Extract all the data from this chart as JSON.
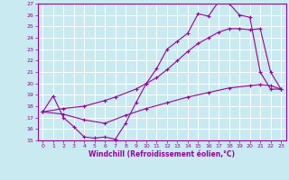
{
  "xlabel": "Windchill (Refroidissement éolien,°C)",
  "xlim": [
    -0.5,
    23.5
  ],
  "ylim": [
    15,
    27
  ],
  "xticks": [
    0,
    1,
    2,
    3,
    4,
    5,
    6,
    7,
    8,
    9,
    10,
    11,
    12,
    13,
    14,
    15,
    16,
    17,
    18,
    19,
    20,
    21,
    22,
    23
  ],
  "yticks": [
    15,
    16,
    17,
    18,
    19,
    20,
    21,
    22,
    23,
    24,
    25,
    26,
    27
  ],
  "line_color": "#990099",
  "bg_color": "#c8eaf0",
  "grid_color": "#ffffff",
  "line1_x": [
    0,
    1,
    2,
    3,
    4,
    5,
    6,
    7,
    8,
    9,
    10,
    11,
    12,
    13,
    14,
    15,
    16,
    17,
    18,
    19,
    20,
    21,
    22,
    23
  ],
  "line1_y": [
    17.5,
    18.9,
    17.0,
    16.2,
    15.3,
    15.2,
    15.3,
    15.1,
    16.5,
    18.3,
    20.0,
    21.3,
    23.0,
    23.7,
    24.4,
    26.1,
    25.9,
    27.2,
    27.0,
    26.0,
    25.8,
    21.0,
    19.5,
    19.5
  ],
  "line2_x": [
    0,
    2,
    4,
    6,
    7,
    9,
    10,
    11,
    12,
    13,
    14,
    15,
    16,
    17,
    18,
    19,
    20,
    21,
    22,
    23
  ],
  "line2_y": [
    17.5,
    17.8,
    18.0,
    18.5,
    18.8,
    19.5,
    20.0,
    20.5,
    21.2,
    22.0,
    22.8,
    23.5,
    24.0,
    24.5,
    24.8,
    24.8,
    24.7,
    24.8,
    21.0,
    19.5
  ],
  "line3_x": [
    0,
    2,
    4,
    6,
    8,
    10,
    12,
    14,
    16,
    18,
    20,
    21,
    22,
    23
  ],
  "line3_y": [
    17.5,
    17.3,
    16.8,
    16.5,
    17.2,
    17.8,
    18.3,
    18.8,
    19.2,
    19.6,
    19.8,
    19.9,
    19.8,
    19.5
  ]
}
